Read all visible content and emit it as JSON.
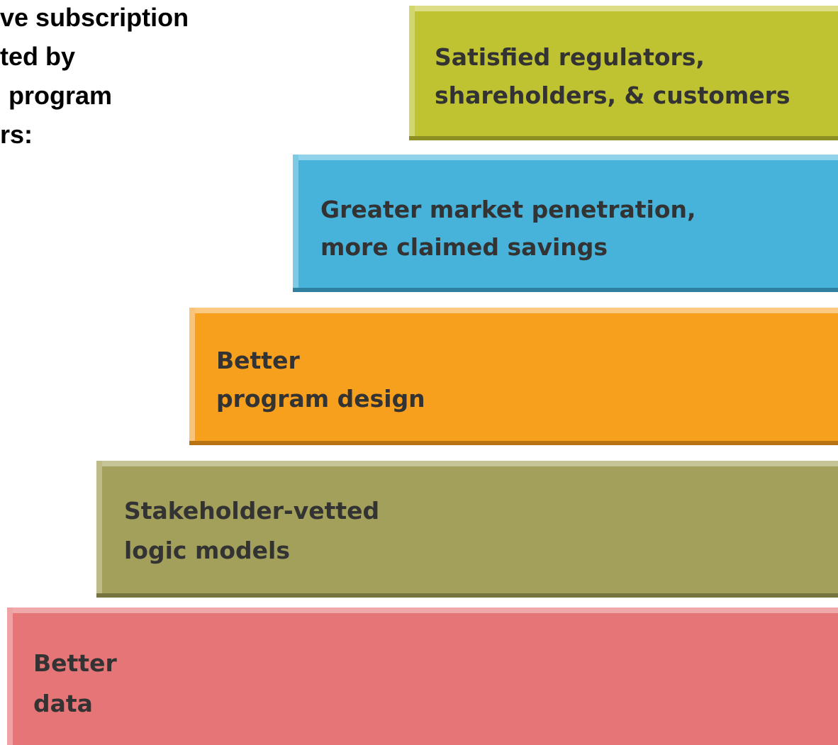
{
  "intro": {
    "lines": [
      "ve subscription",
      "ted by",
      "program",
      "rs:"
    ]
  },
  "steps": [
    {
      "lines": [
        "Satisfied regulators,",
        "shareholders, & customers"
      ]
    },
    {
      "lines": [
        "Greater market penetration,",
        "more claimed savings"
      ]
    },
    {
      "lines": [
        "Better",
        "program design"
      ]
    },
    {
      "lines": [
        "Stakeholder-vetted",
        "logic models"
      ]
    },
    {
      "lines": [
        "Better",
        "data"
      ]
    }
  ]
}
